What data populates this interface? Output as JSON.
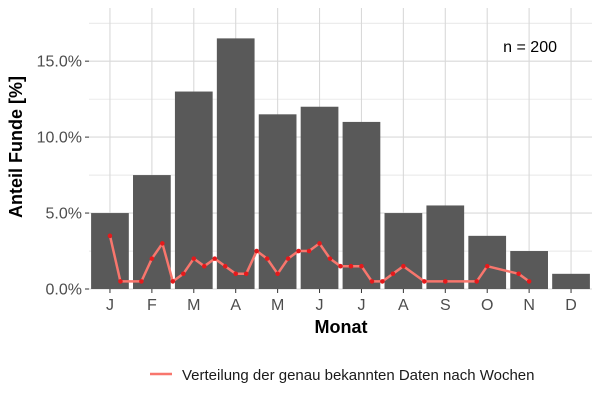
{
  "chart_data": {
    "type": "bar",
    "categories": [
      "J",
      "F",
      "M",
      "A",
      "M",
      "J",
      "J",
      "A",
      "S",
      "O",
      "N",
      "D"
    ],
    "values": [
      5.0,
      7.5,
      13.0,
      16.5,
      11.5,
      12.0,
      11.0,
      5.0,
      5.5,
      3.5,
      2.5,
      1.0
    ],
    "ylim": [
      0,
      18.5
    ],
    "yticks": [
      0,
      5,
      10,
      15
    ],
    "ytick_labels": [
      "0.0%",
      "5.0%",
      "10.0%",
      "15.0%"
    ],
    "xlabel": "Monat",
    "ylabel": "Anteil Funde [%]",
    "annotation": "n = 200",
    "grid": true,
    "legend_position": "bottom",
    "series": [
      {
        "name": "Verteilung der genau bekannten Daten nach Wochen",
        "x": [
          0.0,
          0.25,
          0.75,
          1.0,
          1.25,
          1.5,
          1.75,
          2.0,
          2.25,
          2.5,
          2.75,
          3.0,
          3.25,
          3.5,
          3.75,
          4.0,
          4.25,
          4.5,
          4.75,
          5.0,
          5.25,
          5.5,
          5.75,
          6.0,
          6.25,
          6.5,
          6.75,
          7.0,
          7.5,
          8.0,
          8.75,
          9.0,
          9.75,
          10.0
        ],
        "values": [
          3.5,
          0.5,
          0.5,
          2.0,
          3.0,
          0.5,
          1.0,
          2.0,
          1.5,
          2.0,
          1.5,
          1.0,
          1.0,
          2.5,
          2.0,
          1.0,
          2.0,
          2.5,
          2.5,
          3.0,
          2.0,
          1.5,
          1.5,
          1.5,
          0.5,
          0.5,
          1.0,
          1.5,
          0.5,
          0.5,
          0.5,
          1.5,
          1.0,
          0.5
        ]
      }
    ],
    "colors": {
      "bar": "#595959",
      "line": "#f8766d",
      "point": "#e41a1c",
      "panel": "#ffffff",
      "grid": "#d9d9d9"
    }
  }
}
